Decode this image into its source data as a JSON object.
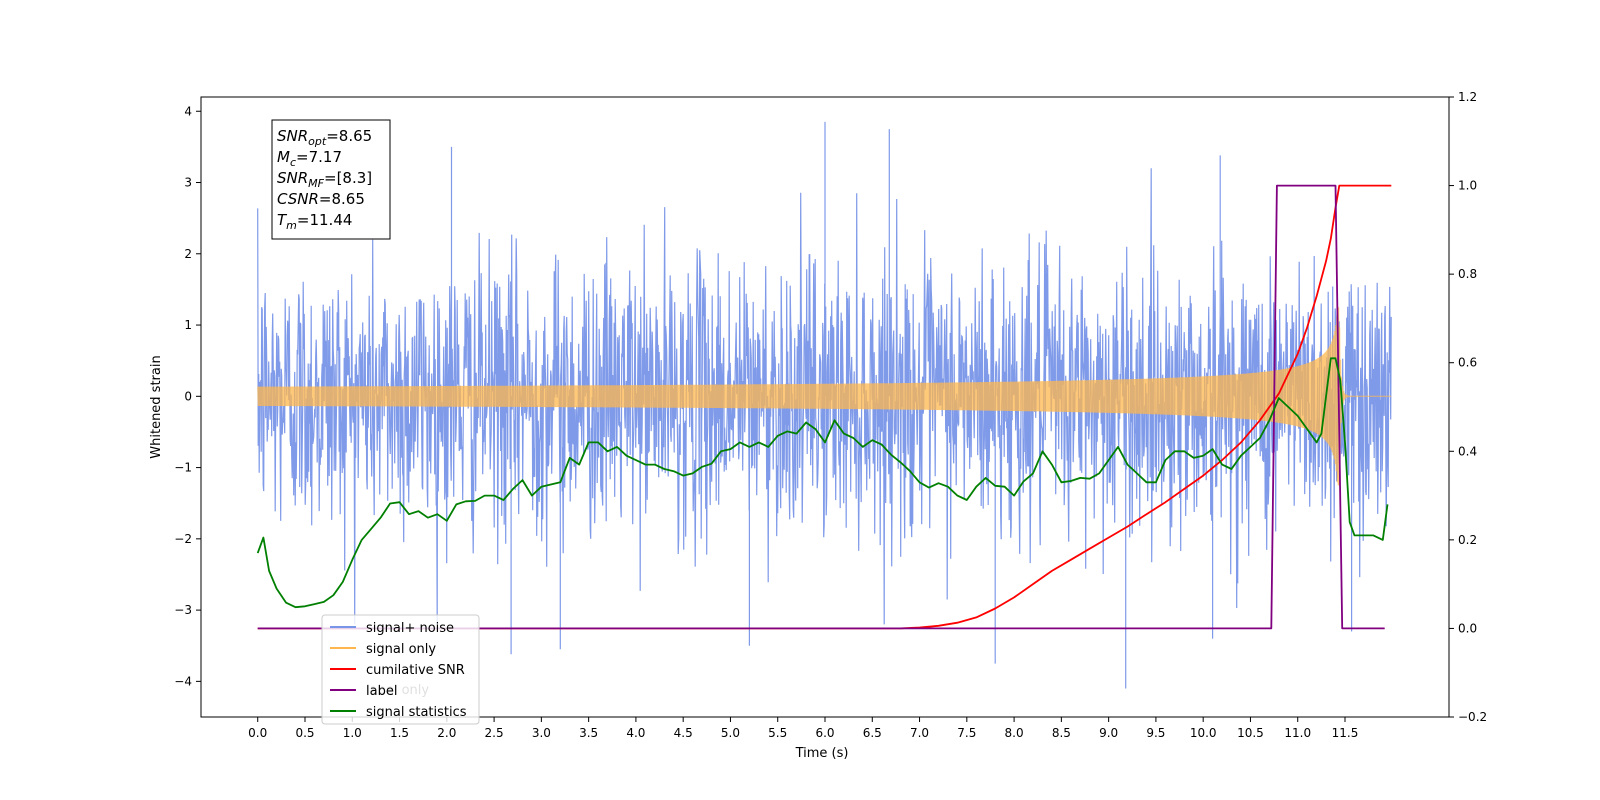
{
  "chart_data": {
    "type": "line",
    "xlabel": "Time (s)",
    "ylabel": "Whitened strain",
    "xlim": [
      -0.6,
      12.6
    ],
    "ylim": [
      -4.5,
      4.2
    ],
    "y2lim": [
      -0.2,
      1.2
    ],
    "x_ticks": [
      0.0,
      0.5,
      1.0,
      1.5,
      2.0,
      2.5,
      3.0,
      3.5,
      4.0,
      4.5,
      5.0,
      5.5,
      6.0,
      6.5,
      7.0,
      7.5,
      8.0,
      8.5,
      9.0,
      9.5,
      10.0,
      10.5,
      11.0,
      11.5
    ],
    "x_tick_labels": [
      "0.0",
      "0.5",
      "1.0",
      "1.5",
      "2.0",
      "2.5",
      "3.0",
      "3.5",
      "4.0",
      "4.5",
      "5.0",
      "5.5",
      "6.0",
      "6.5",
      "7.0",
      "7.5",
      "8.0",
      "8.5",
      "9.0",
      "9.5",
      "10.0",
      "10.5",
      "11.0",
      "11.5"
    ],
    "y_ticks": [
      -4,
      -3,
      -2,
      -1,
      0,
      1,
      2,
      3,
      4
    ],
    "y_tick_labels": [
      "−4",
      "−3",
      "−2",
      "−1",
      "0",
      "1",
      "2",
      "3",
      "4"
    ],
    "y2_ticks": [
      -0.2,
      0.0,
      0.2,
      0.4,
      0.6,
      0.8,
      1.0,
      1.2
    ],
    "y2_tick_labels": [
      "−0.2",
      "0.0",
      "0.2",
      "0.4",
      "0.6",
      "0.8",
      "1.0",
      "1.2"
    ],
    "annotation": [
      {
        "main": "SNR",
        "sub": "opt",
        "rest": "=8.65"
      },
      {
        "main": "M",
        "sub": "c",
        "rest": "=7.17"
      },
      {
        "main": "SNR",
        "sub": "MF",
        "rest": "=[8.3]"
      },
      {
        "main": "CSNR",
        "sub": "",
        "rest": "=8.65"
      },
      {
        "main": "T",
        "sub": "m",
        "rest": "=11.44"
      }
    ],
    "legend": {
      "placement": "lower-left",
      "entries": [
        "signal+ noise",
        "signal only",
        "cumilative SNR",
        "label",
        "signal statistics"
      ],
      "hidden_text": [
        "label only"
      ]
    },
    "series": [
      {
        "name": "signal+ noise",
        "axis": "left",
        "color": "#7895e8",
        "kind": "noise",
        "x_range": [
          0.0,
          11.99
        ],
        "amplitude_std": 1.0,
        "notable_peaks": [
          {
            "x": 6.0,
            "y": 3.85
          },
          {
            "x": 6.68,
            "y": 3.75
          },
          {
            "x": 10.18,
            "y": 3.38
          },
          {
            "x": 2.05,
            "y": 3.5
          },
          {
            "x": 9.18,
            "y": -4.1
          },
          {
            "x": 2.68,
            "y": -3.62
          },
          {
            "x": 3.2,
            "y": -3.55
          },
          {
            "x": 7.8,
            "y": -3.75
          },
          {
            "x": 10.1,
            "y": -3.4
          },
          {
            "x": 5.2,
            "y": -3.5
          },
          {
            "x": 11.57,
            "y": -3.3
          }
        ]
      },
      {
        "name": "signal only",
        "axis": "left",
        "color": "#ffb74d",
        "kind": "chirp",
        "x_range": [
          0.0,
          11.99
        ],
        "merger_time": 11.44,
        "peak_amplitude": 1.25
      },
      {
        "name": "cumilative SNR",
        "axis": "right",
        "color": "#ff0000",
        "x": [
          0.0,
          6.8,
          7.0,
          7.2,
          7.4,
          7.6,
          7.8,
          8.0,
          8.2,
          8.4,
          8.6,
          8.8,
          9.0,
          9.2,
          9.4,
          9.6,
          9.8,
          10.0,
          10.2,
          10.4,
          10.6,
          10.8,
          11.0,
          11.1,
          11.2,
          11.3,
          11.35,
          11.4,
          11.44,
          11.99
        ],
        "y": [
          0.0,
          0.0,
          0.002,
          0.006,
          0.013,
          0.025,
          0.045,
          0.07,
          0.1,
          0.13,
          0.155,
          0.18,
          0.205,
          0.23,
          0.258,
          0.285,
          0.315,
          0.345,
          0.38,
          0.42,
          0.47,
          0.53,
          0.62,
          0.68,
          0.75,
          0.83,
          0.88,
          0.95,
          1.0,
          1.0
        ]
      },
      {
        "name": "label",
        "axis": "right",
        "color": "#800080",
        "x": [
          0.0,
          10.72,
          10.78,
          11.4,
          11.47,
          11.92
        ],
        "y": [
          0.0,
          0.0,
          1.0,
          1.0,
          0.0,
          0.0
        ]
      },
      {
        "name": "signal statistics",
        "axis": "right",
        "color": "#008000",
        "x": [
          0.0,
          0.06,
          0.12,
          0.2,
          0.3,
          0.4,
          0.5,
          0.6,
          0.7,
          0.8,
          0.9,
          1.0,
          1.1,
          1.2,
          1.3,
          1.4,
          1.5,
          1.6,
          1.7,
          1.8,
          1.9,
          2.0,
          2.1,
          2.2,
          2.3,
          2.4,
          2.5,
          2.6,
          2.7,
          2.8,
          2.9,
          3.0,
          3.1,
          3.2,
          3.3,
          3.4,
          3.5,
          3.6,
          3.7,
          3.8,
          3.9,
          4.0,
          4.1,
          4.2,
          4.3,
          4.4,
          4.5,
          4.6,
          4.7,
          4.8,
          4.9,
          5.0,
          5.1,
          5.2,
          5.3,
          5.4,
          5.5,
          5.6,
          5.7,
          5.8,
          5.9,
          6.0,
          6.1,
          6.2,
          6.3,
          6.4,
          6.5,
          6.6,
          6.7,
          6.8,
          6.9,
          7.0,
          7.1,
          7.2,
          7.3,
          7.4,
          7.5,
          7.6,
          7.7,
          7.8,
          7.9,
          8.0,
          8.1,
          8.2,
          8.3,
          8.4,
          8.5,
          8.6,
          8.7,
          8.8,
          8.9,
          9.0,
          9.1,
          9.2,
          9.3,
          9.4,
          9.5,
          9.6,
          9.7,
          9.8,
          9.9,
          10.0,
          10.1,
          10.2,
          10.3,
          10.4,
          10.5,
          10.6,
          10.7,
          10.8,
          10.9,
          11.0,
          11.1,
          11.2,
          11.25,
          11.35,
          11.4,
          11.45,
          11.5,
          11.55,
          11.6,
          11.7,
          11.8,
          11.9,
          11.95
        ],
        "y": [
          0.17,
          0.205,
          0.13,
          0.09,
          0.058,
          0.048,
          0.05,
          0.055,
          0.06,
          0.075,
          0.105,
          0.155,
          0.2,
          0.225,
          0.25,
          0.282,
          0.285,
          0.258,
          0.265,
          0.25,
          0.258,
          0.243,
          0.28,
          0.287,
          0.288,
          0.3,
          0.3,
          0.29,
          0.315,
          0.335,
          0.3,
          0.32,
          0.325,
          0.33,
          0.385,
          0.37,
          0.42,
          0.42,
          0.4,
          0.41,
          0.39,
          0.38,
          0.37,
          0.37,
          0.36,
          0.355,
          0.345,
          0.35,
          0.365,
          0.372,
          0.4,
          0.405,
          0.42,
          0.41,
          0.42,
          0.41,
          0.435,
          0.445,
          0.44,
          0.465,
          0.45,
          0.42,
          0.47,
          0.44,
          0.43,
          0.41,
          0.425,
          0.415,
          0.392,
          0.375,
          0.355,
          0.33,
          0.318,
          0.328,
          0.32,
          0.3,
          0.29,
          0.32,
          0.34,
          0.322,
          0.32,
          0.3,
          0.332,
          0.35,
          0.4,
          0.37,
          0.33,
          0.333,
          0.34,
          0.338,
          0.35,
          0.38,
          0.41,
          0.37,
          0.35,
          0.33,
          0.33,
          0.38,
          0.4,
          0.4,
          0.385,
          0.39,
          0.405,
          0.37,
          0.36,
          0.39,
          0.41,
          0.43,
          0.47,
          0.52,
          0.5,
          0.48,
          0.45,
          0.42,
          0.44,
          0.61,
          0.61,
          0.56,
          0.42,
          0.24,
          0.21,
          0.21,
          0.21,
          0.2,
          0.28
        ]
      }
    ]
  }
}
